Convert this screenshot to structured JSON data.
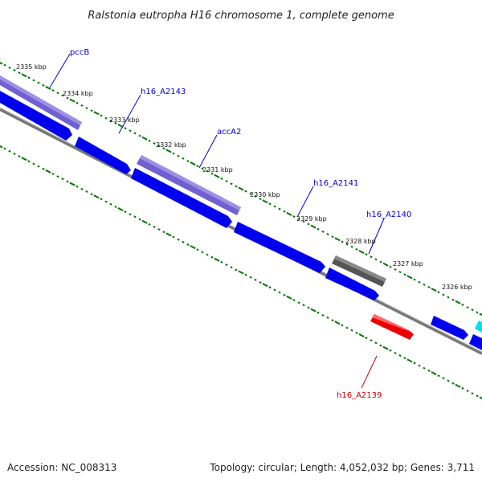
{
  "header": {
    "title": "Ralstonia eutropha H16 chromosome 1, complete genome"
  },
  "footer": {
    "accession": "Accession: NC_008313",
    "summary": "Topology: circular; Length: 4,052,032 bp; Genes: 3,711"
  },
  "colors": {
    "plus_strand_gene": "#7060d0",
    "minus_strand_gene": "#0000ee",
    "selected_gene": "#ee0000",
    "other_gene": "#555555",
    "tick_mark": "#007700",
    "label_blue": "#0000cc",
    "label_red": "#cc0000",
    "backbone": "#777777",
    "partial_feature": "#00e0f0"
  },
  "scale_labels": [
    "2335 kbp",
    "2334 kbp",
    "2333 kbp",
    "2332 kbp",
    "2331 kbp",
    "2330 kbp",
    "2329 kbp",
    "2328 kbp",
    "2327 kbp",
    "2326 kbp"
  ],
  "gene_labels": [
    {
      "name": "pccB",
      "color": "blue"
    },
    {
      "name": "h16_A2143",
      "color": "blue"
    },
    {
      "name": "accA2",
      "color": "blue"
    },
    {
      "name": "h16_A2141",
      "color": "blue"
    },
    {
      "name": "h16_A2140",
      "color": "blue"
    },
    {
      "name": "h16_A2139",
      "color": "red"
    }
  ]
}
